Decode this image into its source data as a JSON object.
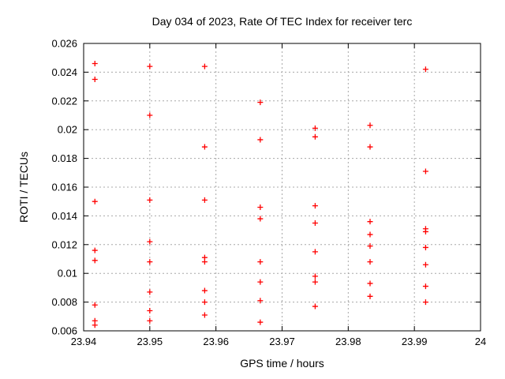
{
  "chart_data": {
    "type": "scatter",
    "title": "Day 034 of 2023, Rate Of TEC Index for receiver terc",
    "xlabel": "GPS time / hours",
    "ylabel": "ROTI / TECUs",
    "xlim": [
      23.94,
      24
    ],
    "ylim": [
      0.006,
      0.026
    ],
    "grid": true,
    "legend_position": "none",
    "background": "#ffffff",
    "border_color": "#000000",
    "grid_color": "#a8a8a8",
    "marker": {
      "shape": "plus",
      "color": "#ff0000",
      "size": 7
    },
    "xticks": [
      {
        "v": 23.94,
        "label": "23.94"
      },
      {
        "v": 23.95,
        "label": "23.95"
      },
      {
        "v": 23.96,
        "label": "23.96"
      },
      {
        "v": 23.97,
        "label": "23.97"
      },
      {
        "v": 23.98,
        "label": "23.98"
      },
      {
        "v": 23.99,
        "label": "23.99"
      },
      {
        "v": 24.0,
        "label": "24"
      }
    ],
    "yticks": [
      {
        "v": 0.006,
        "label": "0.006"
      },
      {
        "v": 0.008,
        "label": "0.008"
      },
      {
        "v": 0.01,
        "label": "0.01"
      },
      {
        "v": 0.012,
        "label": "0.012"
      },
      {
        "v": 0.014,
        "label": "0.014"
      },
      {
        "v": 0.016,
        "label": "0.016"
      },
      {
        "v": 0.018,
        "label": "0.018"
      },
      {
        "v": 0.02,
        "label": "0.02"
      },
      {
        "v": 0.022,
        "label": "0.022"
      },
      {
        "v": 0.024,
        "label": "0.024"
      },
      {
        "v": 0.026,
        "label": "0.026"
      }
    ],
    "series": [
      {
        "name": "ROTI",
        "points": [
          [
            23.9417,
            0.0246
          ],
          [
            23.9417,
            0.0235
          ],
          [
            23.9417,
            0.015
          ],
          [
            23.9417,
            0.0116
          ],
          [
            23.9417,
            0.0109
          ],
          [
            23.9417,
            0.0078
          ],
          [
            23.9417,
            0.0067
          ],
          [
            23.9417,
            0.0064
          ],
          [
            23.95,
            0.0244
          ],
          [
            23.95,
            0.021
          ],
          [
            23.95,
            0.0151
          ],
          [
            23.95,
            0.0122
          ],
          [
            23.95,
            0.0108
          ],
          [
            23.95,
            0.0087
          ],
          [
            23.95,
            0.0074
          ],
          [
            23.95,
            0.0067
          ],
          [
            23.9583,
            0.0244
          ],
          [
            23.9583,
            0.0188
          ],
          [
            23.9583,
            0.0151
          ],
          [
            23.9583,
            0.0111
          ],
          [
            23.9583,
            0.0108
          ],
          [
            23.9583,
            0.0088
          ],
          [
            23.9583,
            0.008
          ],
          [
            23.9583,
            0.0071
          ],
          [
            23.9667,
            0.0219
          ],
          [
            23.9667,
            0.0193
          ],
          [
            23.9667,
            0.0146
          ],
          [
            23.9667,
            0.0138
          ],
          [
            23.9667,
            0.0108
          ],
          [
            23.9667,
            0.0094
          ],
          [
            23.9667,
            0.0081
          ],
          [
            23.9667,
            0.0066
          ],
          [
            23.975,
            0.0201
          ],
          [
            23.975,
            0.0195
          ],
          [
            23.975,
            0.0147
          ],
          [
            23.975,
            0.0135
          ],
          [
            23.975,
            0.0115
          ],
          [
            23.975,
            0.0098
          ],
          [
            23.975,
            0.0094
          ],
          [
            23.975,
            0.0077
          ],
          [
            23.9833,
            0.0203
          ],
          [
            23.9833,
            0.0188
          ],
          [
            23.9833,
            0.0136
          ],
          [
            23.9833,
            0.0127
          ],
          [
            23.9833,
            0.0119
          ],
          [
            23.9833,
            0.0108
          ],
          [
            23.9833,
            0.0093
          ],
          [
            23.9833,
            0.0084
          ],
          [
            23.9917,
            0.0242
          ],
          [
            23.9917,
            0.0171
          ],
          [
            23.9917,
            0.0131
          ],
          [
            23.9917,
            0.0129
          ],
          [
            23.9917,
            0.0118
          ],
          [
            23.9917,
            0.0106
          ],
          [
            23.9917,
            0.0091
          ],
          [
            23.9917,
            0.008
          ]
        ]
      }
    ]
  }
}
